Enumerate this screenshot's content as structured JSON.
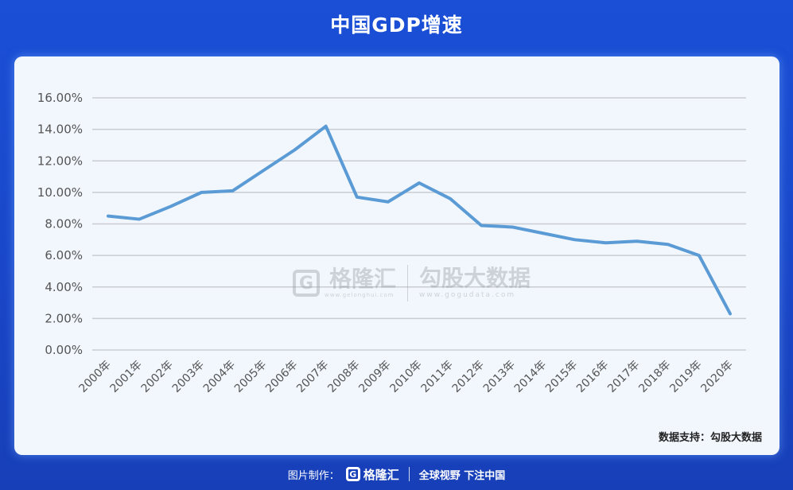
{
  "header": {
    "title": "中国GDP增速"
  },
  "chart_data": {
    "type": "line",
    "title": "",
    "xlabel": "",
    "ylabel": "",
    "categories": [
      "2000年",
      "2001年",
      "2002年",
      "2003年",
      "2004年",
      "2005年",
      "2006年",
      "2007年",
      "2008年",
      "2009年",
      "2010年",
      "2011年",
      "2012年",
      "2013年",
      "2014年",
      "2015年",
      "2016年",
      "2017年",
      "2018年",
      "2019年",
      "2020年"
    ],
    "series": [
      {
        "values": [
          8.5,
          8.3,
          9.1,
          10.0,
          10.1,
          11.4,
          12.7,
          14.2,
          9.7,
          9.4,
          10.6,
          9.6,
          7.9,
          7.8,
          7.4,
          7.0,
          6.8,
          6.9,
          6.7,
          6.0,
          2.3
        ]
      }
    ],
    "ylim": [
      0,
      16
    ],
    "yticks": [
      "0.00%",
      "2.00%",
      "4.00%",
      "6.00%",
      "8.00%",
      "10.00%",
      "12.00%",
      "14.00%",
      "16.00%"
    ],
    "ytick_values": [
      0,
      2,
      4,
      6,
      8,
      10,
      12,
      14,
      16
    ],
    "grid": true,
    "line_color": "#5b9bd5"
  },
  "watermark": {
    "logo_letter": "G",
    "brand": "格隆汇",
    "domain": "www.gelonghui.com",
    "brand2": "勾股大数据",
    "domain2": "www.gogudata.com"
  },
  "source": "数据支持：勾股大数据",
  "footer": {
    "made_by": "图片制作：",
    "logo_letter": "G",
    "logo_text": "格隆汇",
    "slogan": "全球视野 下注中国"
  }
}
